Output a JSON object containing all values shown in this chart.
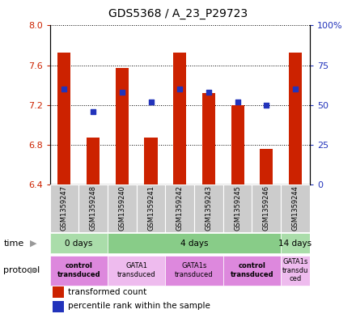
{
  "title": "GDS5368 / A_23_P29723",
  "samples": [
    "GSM1359247",
    "GSM1359248",
    "GSM1359240",
    "GSM1359241",
    "GSM1359242",
    "GSM1359243",
    "GSM1359245",
    "GSM1359246",
    "GSM1359244"
  ],
  "bar_values": [
    7.73,
    6.87,
    7.57,
    6.87,
    7.73,
    7.32,
    7.2,
    6.76,
    7.73
  ],
  "percentile_values": [
    60,
    46,
    58,
    52,
    60,
    58,
    52,
    50,
    60
  ],
  "ylim_left": [
    6.4,
    8.0
  ],
  "ylim_right": [
    0,
    100
  ],
  "yticks_left": [
    6.4,
    6.8,
    7.2,
    7.6,
    8.0
  ],
  "yticks_right": [
    0,
    25,
    50,
    75,
    100
  ],
  "bar_color": "#cc2200",
  "dot_color": "#2233bb",
  "bar_width": 0.45,
  "time_groups": [
    {
      "label": "0 days",
      "start": 0,
      "end": 2,
      "color": "#aaddaa"
    },
    {
      "label": "4 days",
      "start": 2,
      "end": 8,
      "color": "#88cc88"
    },
    {
      "label": "14 days",
      "start": 8,
      "end": 9,
      "color": "#aaddaa"
    }
  ],
  "protocol_groups": [
    {
      "label": "control\ntransduced",
      "start": 0,
      "end": 2,
      "color": "#dd88dd",
      "bold": true
    },
    {
      "label": "GATA1\ntransduced",
      "start": 2,
      "end": 4,
      "color": "#eebbee",
      "bold": false
    },
    {
      "label": "GATA1s\ntransduced",
      "start": 4,
      "end": 6,
      "color": "#dd88dd",
      "bold": false
    },
    {
      "label": "control\ntransduced",
      "start": 6,
      "end": 8,
      "color": "#dd88dd",
      "bold": true
    },
    {
      "label": "GATA1s\ntransdu\nced",
      "start": 8,
      "end": 9,
      "color": "#eebbee",
      "bold": false
    }
  ],
  "legend_items": [
    {
      "color": "#cc2200",
      "label": "transformed count"
    },
    {
      "color": "#2233bb",
      "label": "percentile rank within the sample"
    }
  ],
  "base_value": 6.4
}
